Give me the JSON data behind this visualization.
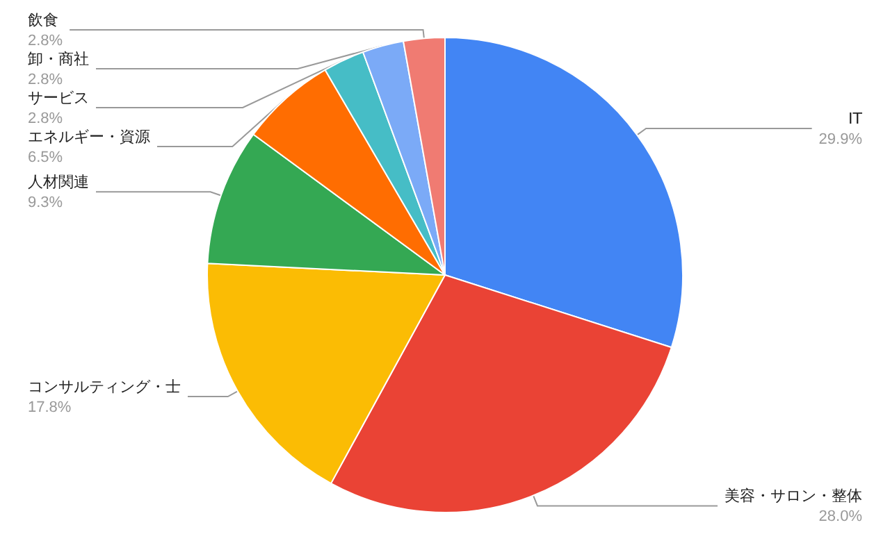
{
  "chart_data": {
    "type": "pie",
    "categories": [
      "IT",
      "美容・サロン・整体",
      "コンサルティング・士",
      "人材関連",
      "エネルギー・資源",
      "サービス",
      "卸・商社",
      "飲食"
    ],
    "values": [
      29.9,
      28.0,
      17.8,
      9.3,
      6.5,
      2.8,
      2.8,
      2.8
    ],
    "value_labels": [
      "29.9%",
      "28.0%",
      "17.8%",
      "9.3%",
      "6.5%",
      "2.8%",
      "2.8%",
      "2.8%"
    ],
    "colors": [
      "#4285f4",
      "#ea4335",
      "#fbbc04",
      "#34a853",
      "#ff6d01",
      "#46bdc6",
      "#7baaf7",
      "#f07b72"
    ],
    "legend": false
  }
}
